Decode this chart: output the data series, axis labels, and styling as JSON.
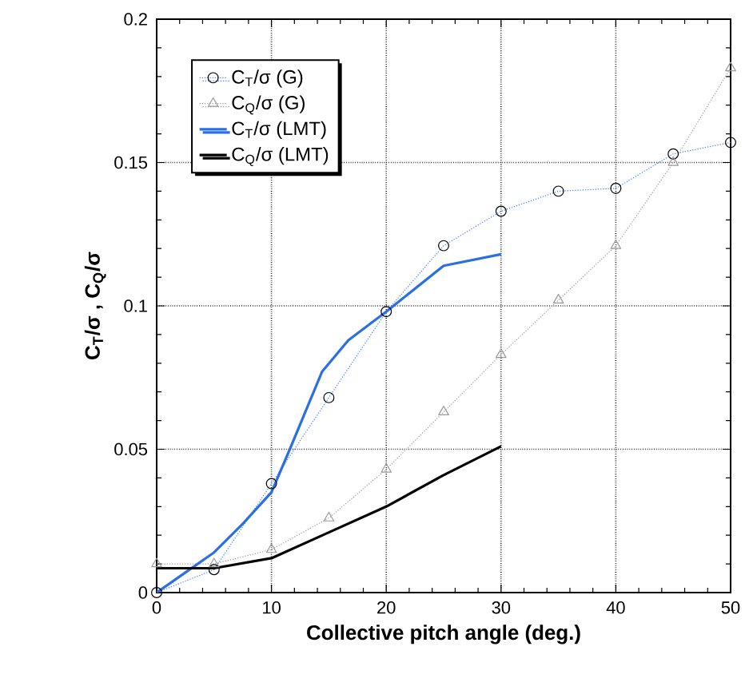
{
  "chart_data": {
    "type": "line",
    "xlabel": "Collective pitch angle (deg.)",
    "ylabel": "C$_{T}$/σ , C$_{Q}$/σ",
    "xlim": [
      0,
      50
    ],
    "ylim": [
      0,
      0.2
    ],
    "xticks": [
      0,
      10,
      20,
      30,
      40,
      50
    ],
    "yticks": [
      0,
      0.05,
      0.1,
      0.15,
      0.2
    ],
    "grid": true,
    "legend": "top left",
    "series": [
      {
        "name": "C$_{T}$/σ (G)",
        "color": "#3a7bff",
        "marker": "circle",
        "line_style": "dotted",
        "x": [
          0,
          5,
          10,
          15,
          20,
          25,
          30,
          35,
          40,
          45,
          50
        ],
        "values": [
          0,
          0.008,
          0.038,
          0.068,
          0.098,
          0.121,
          0.133,
          0.14,
          0.141,
          0.153,
          0.157
        ]
      },
      {
        "name": "C$_{Q}$/σ (G)",
        "color": "#999999",
        "marker": "triangle",
        "line_style": "dotted",
        "x": [
          0,
          5,
          10,
          15,
          20,
          25,
          30,
          35,
          40,
          45,
          50
        ],
        "values": [
          0.01,
          0.01,
          0.015,
          0.026,
          0.043,
          0.063,
          0.083,
          0.102,
          0.121,
          0.15,
          0.183
        ]
      },
      {
        "name": "C$_{T}$/σ (LMT)",
        "color": "#2a6fe8",
        "marker": "none",
        "line_style": "solid",
        "x": [
          0,
          2.5,
          5,
          7.5,
          10,
          11.6,
          14.4,
          16.7,
          20,
          25,
          30
        ],
        "values": [
          0,
          0.007,
          0.014,
          0.024,
          0.035,
          0.05,
          0.077,
          0.088,
          0.098,
          0.114,
          0.118
        ]
      },
      {
        "name": "C$_{Q}$/σ (LMT)",
        "color": "#000000",
        "marker": "none",
        "line_style": "solid",
        "x": [
          0,
          5,
          10,
          15,
          20,
          25,
          30
        ],
        "values": [
          0.0085,
          0.0085,
          0.012,
          0.021,
          0.03,
          0.041,
          0.051
        ]
      }
    ]
  }
}
